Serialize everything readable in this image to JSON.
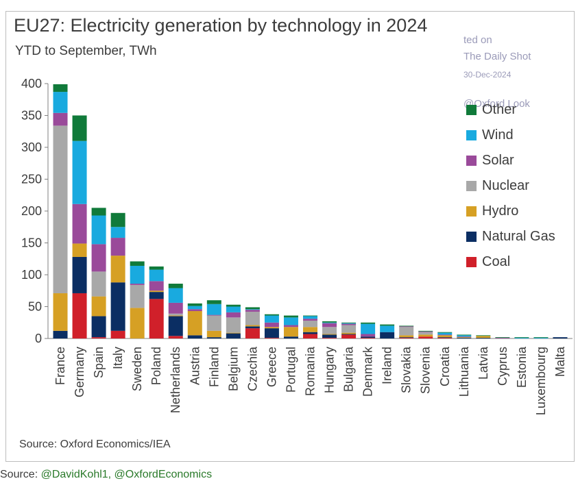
{
  "chart_data": {
    "type": "bar",
    "stacked": true,
    "title": "EU27: Electricity generation by technology in 2024",
    "subtitle": "YTD to September, TWh",
    "ylim": [
      0,
      400
    ],
    "yticks": [
      0,
      50,
      100,
      150,
      200,
      250,
      300,
      350,
      400
    ],
    "categories": [
      "France",
      "Germany",
      "Spain",
      "Italy",
      "Sweden",
      "Poland",
      "Netherlands",
      "Austria",
      "Finland",
      "Belgium",
      "Czechia",
      "Greece",
      "Portugal",
      "Romania",
      "Hungary",
      "Bulgaria",
      "Denmark",
      "Ireland",
      "Slovakia",
      "Slovenia",
      "Croatia",
      "Lithuania",
      "Latvia",
      "Cyprus",
      "Estonia",
      "Luxembourg",
      "Malta"
    ],
    "series": [
      {
        "name": "Coal",
        "color": "#d0202a",
        "values": [
          0,
          71,
          2,
          12,
          0,
          62,
          4,
          0,
          0,
          0,
          16,
          1,
          0,
          7,
          1,
          6,
          1,
          0,
          1,
          3,
          1,
          0,
          0,
          0,
          0,
          0,
          0
        ]
      },
      {
        "name": "Natural Gas",
        "color": "#0b2e63",
        "values": [
          12,
          57,
          33,
          76,
          0,
          11,
          31,
          5,
          2,
          8,
          3,
          15,
          3,
          3,
          5,
          1,
          2,
          10,
          1,
          0,
          1,
          1,
          1,
          0,
          0,
          0,
          2
        ]
      },
      {
        "name": "Hydro",
        "color": "#d6a024",
        "values": [
          59,
          21,
          31,
          42,
          48,
          2,
          1,
          38,
          10,
          1,
          2,
          2,
          15,
          8,
          1,
          2,
          0,
          0,
          3,
          3,
          3,
          1,
          3,
          0,
          0,
          0,
          0
        ]
      },
      {
        "name": "Nuclear",
        "color": "#a8a8a8",
        "values": [
          263,
          0,
          39,
          0,
          36,
          0,
          3,
          0,
          24,
          24,
          21,
          0,
          0,
          10,
          11,
          12,
          0,
          0,
          13,
          4,
          0,
          0,
          0,
          0,
          0,
          0,
          0
        ]
      },
      {
        "name": "Solar",
        "color": "#9a4a9a",
        "values": [
          20,
          62,
          43,
          28,
          2,
          15,
          17,
          3,
          1,
          8,
          3,
          7,
          3,
          3,
          6,
          2,
          4,
          0,
          1,
          1,
          1,
          1,
          0,
          1,
          0,
          0,
          0
        ]
      },
      {
        "name": "Wind",
        "color": "#19aadf",
        "values": [
          33,
          99,
          45,
          17,
          28,
          18,
          23,
          5,
          17,
          9,
          1,
          11,
          12,
          4,
          1,
          1,
          16,
          10,
          0,
          0,
          3,
          2,
          0,
          0,
          1,
          1,
          0
        ]
      },
      {
        "name": "Other",
        "color": "#107a3a",
        "values": [
          12,
          40,
          12,
          22,
          7,
          5,
          7,
          4,
          6,
          3,
          3,
          2,
          3,
          1,
          2,
          1,
          2,
          2,
          1,
          1,
          1,
          1,
          1,
          1,
          1,
          1,
          0
        ]
      }
    ],
    "legend_position": "right",
    "grid": false
  },
  "legend_order": [
    "Other",
    "Wind",
    "Solar",
    "Nuclear",
    "Hydro",
    "Natural Gas",
    "Coal"
  ],
  "watermark": {
    "line1": "ted on",
    "line2": "The Daily Shot",
    "line3": "30-Dec-2024",
    "line4": "@Oxford Look"
  },
  "source": "Source: Oxford Economics/IEA",
  "footer": {
    "prefix": "Source: ",
    "links": "@DavidKohl1, @OxfordEconomics"
  }
}
